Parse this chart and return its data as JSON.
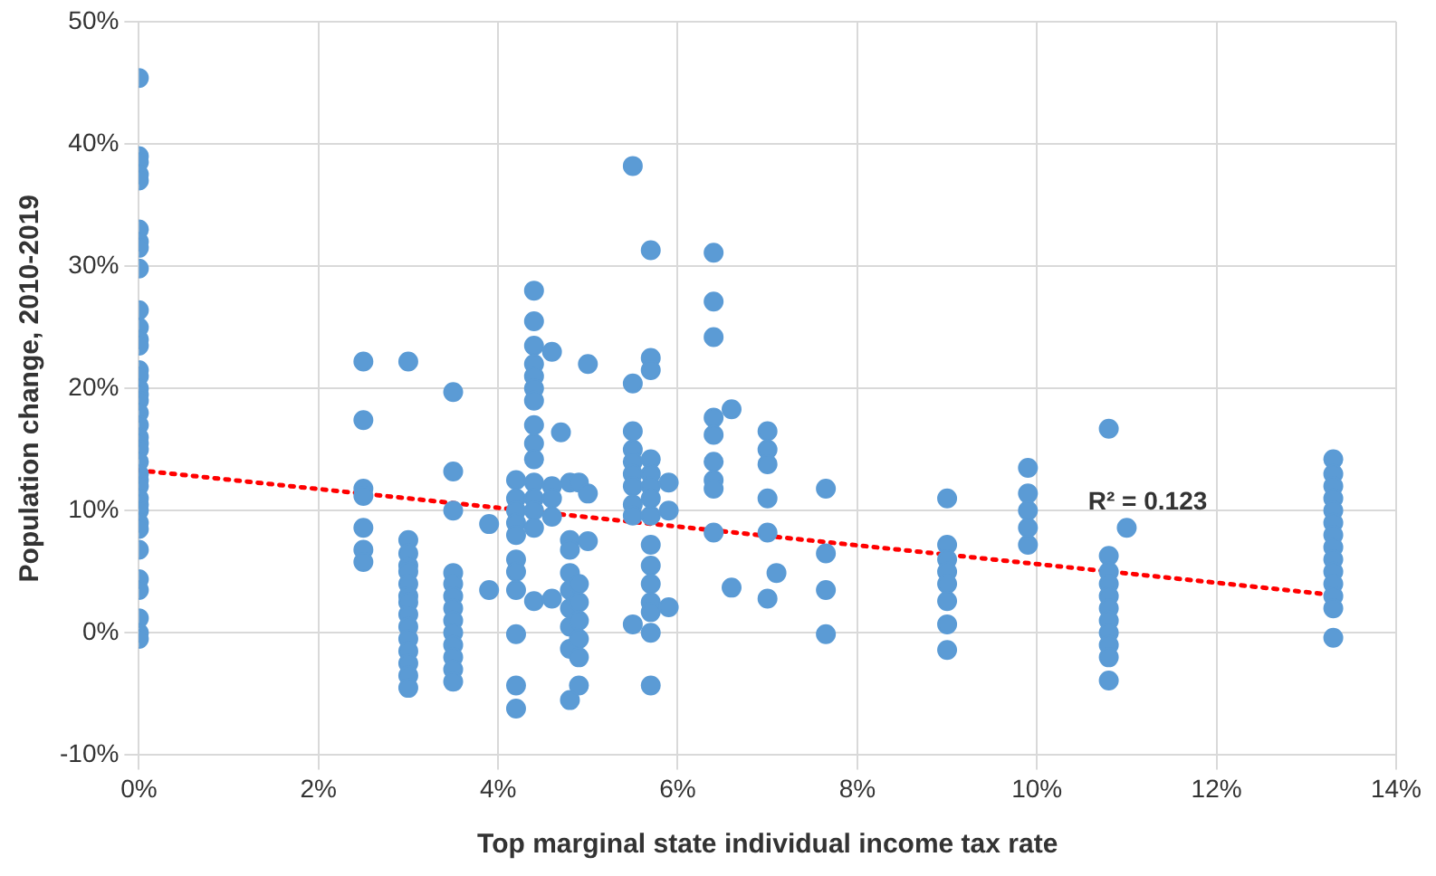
{
  "chart_data": {
    "type": "scatter",
    "xlabel": "Top marginal state individual income tax rate",
    "ylabel": "Population change, 2010-2019",
    "xlim": [
      0,
      14
    ],
    "xticks": [
      {
        "value": 0,
        "label": "0%"
      },
      {
        "value": 2,
        "label": "2%"
      },
      {
        "value": 4,
        "label": "4%"
      },
      {
        "value": 6,
        "label": "6%"
      },
      {
        "value": 8,
        "label": "8%"
      },
      {
        "value": 10,
        "label": "10%"
      },
      {
        "value": 12,
        "label": "12%"
      },
      {
        "value": 14,
        "label": "14%"
      }
    ],
    "ylim": [
      -10,
      50
    ],
    "yticks": [
      {
        "value": -10,
        "label": "-10%"
      },
      {
        "value": 0,
        "label": "0%"
      },
      {
        "value": 10,
        "label": "10%"
      },
      {
        "value": 20,
        "label": "20%"
      },
      {
        "value": 30,
        "label": "30%"
      },
      {
        "value": 40,
        "label": "40%"
      },
      {
        "value": 50,
        "label": "50%"
      }
    ],
    "grid": true,
    "marker": "circle",
    "annotations": [
      "R² = 0.123"
    ],
    "series": [
      {
        "color": "#5b9bd5",
        "x": [
          0,
          0,
          0,
          0,
          0,
          0,
          0,
          0,
          0,
          0,
          0,
          0,
          0,
          0,
          0,
          0,
          0,
          0,
          0,
          0,
          0,
          0,
          0,
          0,
          0,
          0,
          0,
          0,
          0,
          0,
          0,
          0,
          0,
          0,
          0,
          0,
          0,
          0,
          2.5,
          2.5,
          2.5,
          2.5,
          2.5,
          2.5,
          2.5,
          3,
          3,
          3,
          3,
          3,
          3,
          3,
          3,
          3,
          3,
          3,
          3,
          3,
          3,
          3,
          3.5,
          3.5,
          3.5,
          3.5,
          3.5,
          3.5,
          3.5,
          3.5,
          3.5,
          3.5,
          3.5,
          3.5,
          3.5,
          3.9,
          3.9,
          4.2,
          4.2,
          4.2,
          4.2,
          4.2,
          4.2,
          4.2,
          4.2,
          4.2,
          4.2,
          4.2,
          4.4,
          4.4,
          4.4,
          4.4,
          4.4,
          4.4,
          4.4,
          4.4,
          4.4,
          4.4,
          4.4,
          4.4,
          4.4,
          4.4,
          4.4,
          4.6,
          4.7,
          4.6,
          4.6,
          4.6,
          4.6,
          4.8,
          4.8,
          4.8,
          4.8,
          4.8,
          4.8,
          4.8,
          4.8,
          4.8,
          4.9,
          4.9,
          4.9,
          4.9,
          4.9,
          4.9,
          4.9,
          5,
          5,
          5,
          5.5,
          5.5,
          5.5,
          5.5,
          5.5,
          5.5,
          5.5,
          5.5,
          5.5,
          5.5,
          5.7,
          5.7,
          5.7,
          5.7,
          5.7,
          5.7,
          5.7,
          5.7,
          5.7,
          5.7,
          5.7,
          5.7,
          5.7,
          5.7,
          5.7,
          5.9,
          5.9,
          5.9,
          6.4,
          6.4,
          6.4,
          6.4,
          6.4,
          6.4,
          6.4,
          6.4,
          6.4,
          6.6,
          6.6,
          7,
          7,
          7,
          7,
          7,
          7,
          7.1,
          7.65,
          7.65,
          7.65,
          7.65,
          9,
          9,
          9,
          9,
          9,
          9,
          9,
          9,
          9.9,
          9.9,
          9.9,
          9.9,
          9.9,
          10.8,
          10.8,
          10.8,
          10.8,
          10.8,
          10.8,
          10.8,
          10.8,
          10.8,
          10.8,
          10.8,
          11,
          13.3,
          13.3,
          13.3,
          13.3,
          13.3,
          13.3,
          13.3,
          13.3,
          13.3,
          13.3,
          13.3,
          13.3,
          13.3,
          13.3
        ],
        "values": [
          45.4,
          39,
          38.5,
          37.5,
          37,
          33,
          32,
          31.5,
          29.8,
          26.4,
          25,
          24,
          23.5,
          21.5,
          21,
          20,
          19.5,
          19,
          18,
          17,
          16,
          15.5,
          15,
          14,
          13,
          12.5,
          12,
          11,
          10.5,
          10,
          9,
          8.5,
          6.8,
          4.4,
          3.5,
          1.2,
          0,
          -0.5,
          22.2,
          17.4,
          11.8,
          11.2,
          8.6,
          6.8,
          5.8,
          22.2,
          7.6,
          6.5,
          5.5,
          5,
          4,
          3,
          2.5,
          1.5,
          0.5,
          -0.5,
          -1.5,
          -2.5,
          -3.5,
          -4.5,
          19.7,
          13.2,
          10,
          4.9,
          4,
          3,
          2,
          1,
          0,
          -1,
          -2,
          -3,
          -4,
          3.5,
          8.9,
          12.5,
          11,
          10,
          9,
          8,
          6,
          5,
          3.5,
          -0.1,
          -4.3,
          -6.2,
          28,
          25.5,
          23.5,
          22,
          21,
          20,
          19,
          17,
          15.5,
          14.2,
          12.3,
          11,
          10,
          8.6,
          2.6,
          23,
          16.4,
          12,
          11,
          9.5,
          2.8,
          12.3,
          7.6,
          6.8,
          4.9,
          3.5,
          2,
          0.5,
          -1.3,
          -5.5,
          4,
          2.5,
          1,
          -0.5,
          -2,
          -4.3,
          12.3,
          22,
          11.4,
          7.5,
          38.2,
          20.4,
          16.5,
          15,
          14,
          13,
          12,
          10.5,
          9.6,
          0.7,
          31.3,
          22.5,
          21.5,
          14.2,
          13,
          12,
          11,
          9.6,
          7.2,
          5.5,
          4,
          2.5,
          1.7,
          0,
          -4.3,
          12.3,
          10,
          2.1,
          31.1,
          27.1,
          24.2,
          17.6,
          16.2,
          14,
          12.5,
          11.8,
          8.2,
          18.3,
          3.7,
          16.5,
          15,
          13.8,
          11,
          8.2,
          2.8,
          4.9,
          11.8,
          6.5,
          3.5,
          -0.1,
          11,
          7.2,
          6,
          5,
          4,
          2.6,
          0.7,
          -1.4,
          13.5,
          11.4,
          10,
          8.6,
          7.2,
          16.7,
          6.3,
          5,
          4,
          3,
          2,
          1,
          0,
          -1,
          -2,
          -3.9,
          8.6,
          14.2,
          13,
          12,
          11,
          10,
          9,
          8,
          7,
          6,
          5,
          4,
          3,
          2,
          -0.4
        ]
      },
      {
        "type": "line",
        "color": "#ff0000",
        "line_style": "dotted",
        "marker": "none",
        "x": [
          0,
          13.3
        ],
        "values": [
          13.3,
          3.1
        ]
      }
    ]
  }
}
